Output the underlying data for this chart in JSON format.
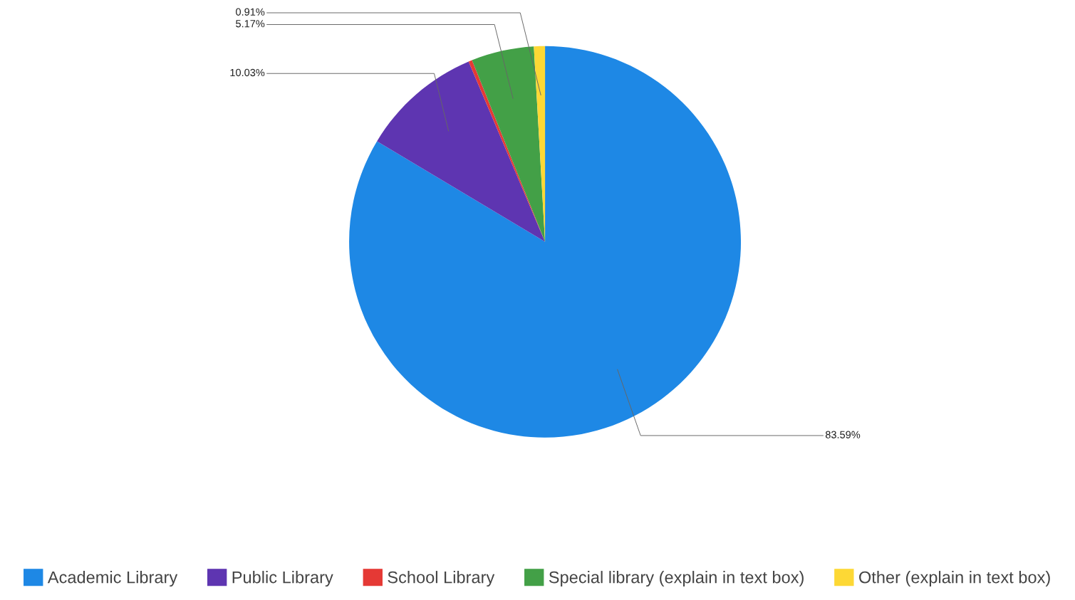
{
  "chart_data": {
    "type": "pie",
    "categories": [
      "Academic Library",
      "Public Library",
      "School Library",
      "Special library (explain in text box)",
      "Other (explain in text box)"
    ],
    "values": [
      83.59,
      10.03,
      0.3,
      5.17,
      0.91
    ],
    "value_labels": [
      "83.59%",
      "10.03%",
      null,
      "5.17%",
      "0.91%"
    ],
    "colors": [
      "#1e88e5",
      "#5e35b1",
      "#e53935",
      "#43a047",
      "#fdd835"
    ],
    "legend": "bottom"
  }
}
